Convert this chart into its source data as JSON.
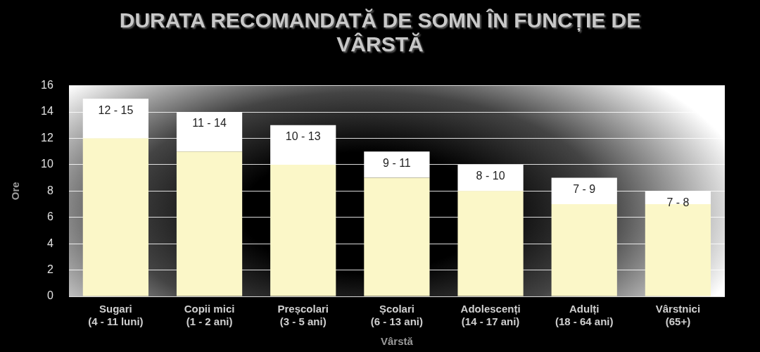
{
  "chart_data": {
    "type": "bar",
    "title": "DURATA RECOMANDATĂ DE SOMN ÎN FUNCȚIE DE VÂRSTĂ",
    "xlabel": "Vârstă",
    "ylabel": "Ore",
    "categories": [
      "Sugari\n(4 - 11 luni)",
      "Copii mici\n(1 - 2 ani)",
      "Preșcolari\n(3 - 5 ani)",
      "Școlari\n(6 - 13 ani)",
      "Adolescenți\n(14 - 17 ani)",
      "Adulți\n(18 - 64 ani)",
      "Vârstnici\n(65+)"
    ],
    "stacked": true,
    "series": [
      {
        "color": "#fbf7c8",
        "values": [
          12,
          11,
          10,
          9,
          8,
          7,
          7
        ]
      },
      {
        "color": "#ffffff",
        "values": [
          3,
          3,
          3,
          2,
          2,
          2,
          1
        ]
      }
    ],
    "annotations": [
      {
        "text": "12 - 15",
        "x": "Sugari\n(4 - 11 luni)",
        "y": 15
      },
      {
        "text": "11 - 14",
        "x": "Copii mici\n(1 - 2 ani)",
        "y": 14
      },
      {
        "text": "10 - 13",
        "x": "Preșcolari\n(3 - 5 ani)",
        "y": 13
      },
      {
        "text": "9 - 11",
        "x": "Școlari\n(6 - 13 ani)",
        "y": 11
      },
      {
        "text": "8 - 10",
        "x": "Adolescenți\n(14 - 17 ani)",
        "y": 10
      },
      {
        "text": "7 - 9",
        "x": "Adulți\n(18 - 64 ani)",
        "y": 9
      },
      {
        "text": "7 - 8",
        "x": "Vârstnici\n(65+)",
        "y": 8
      }
    ],
    "ylim": [
      0,
      16
    ],
    "yticks": [
      0,
      2,
      4,
      6,
      8,
      10,
      12,
      14,
      16
    ],
    "grid": "y",
    "legend": false
  }
}
